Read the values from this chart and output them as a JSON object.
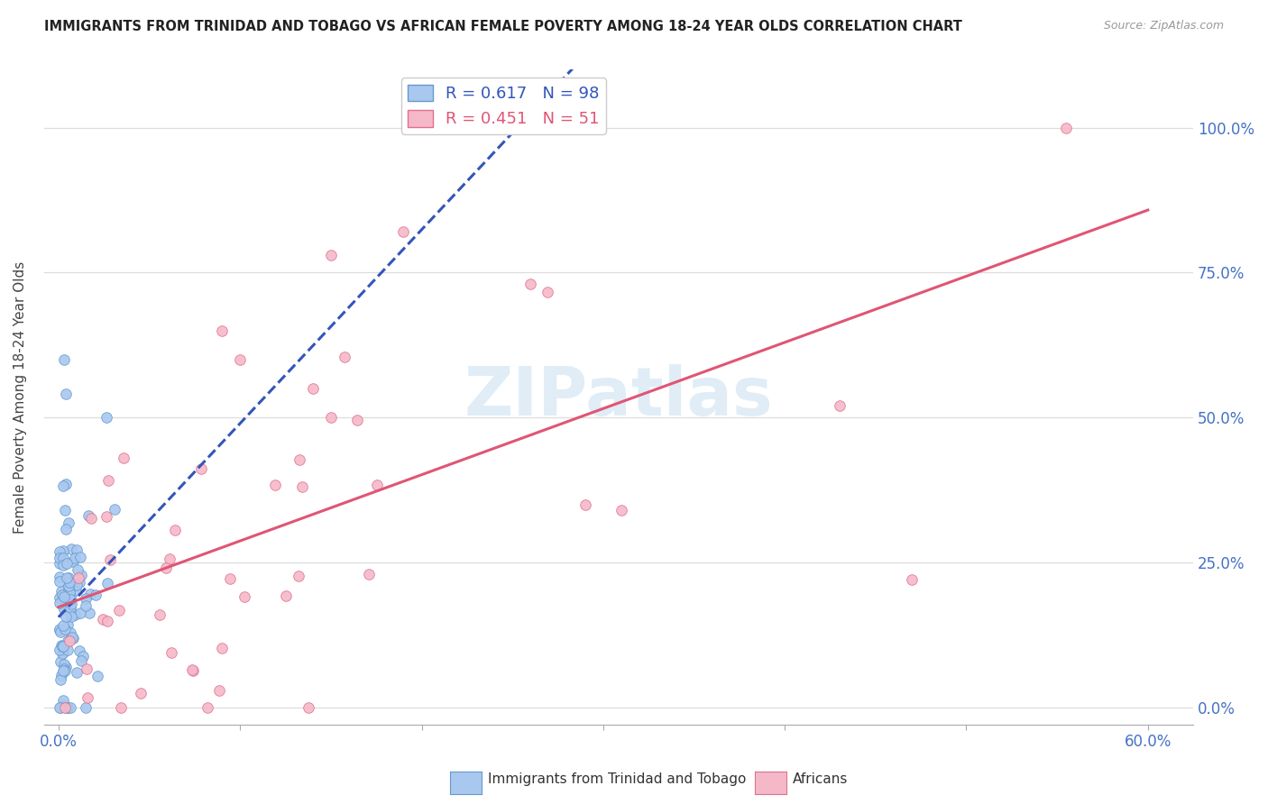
{
  "title": "IMMIGRANTS FROM TRINIDAD AND TOBAGO VS AFRICAN FEMALE POVERTY AMONG 18-24 YEAR OLDS CORRELATION CHART",
  "source": "Source: ZipAtlas.com",
  "ylabel": "Female Poverty Among 18-24 Year Olds",
  "yticks": [
    "0.0%",
    "25.0%",
    "50.0%",
    "75.0%",
    "100.0%"
  ],
  "ytick_vals": [
    0.0,
    0.25,
    0.5,
    0.75,
    1.0
  ],
  "xlim": [
    0.0,
    0.6
  ],
  "ylim": [
    0.0,
    1.0
  ],
  "series1_color": "#A8C8F0",
  "series1_edge": "#6699CC",
  "series2_color": "#F5B8C8",
  "series2_edge": "#E07090",
  "trendline1_color": "#3355BB",
  "trendline2_color": "#E05575",
  "watermark": "ZIPatlas",
  "legend_label1": "R = 0.617   N = 98",
  "legend_label2": "R = 0.451   N = 51",
  "legend1_color": "#3355BB",
  "legend2_color": "#E05575",
  "bottom_label1": "Immigrants from Trinidad and Tobago",
  "bottom_label2": "Africans"
}
